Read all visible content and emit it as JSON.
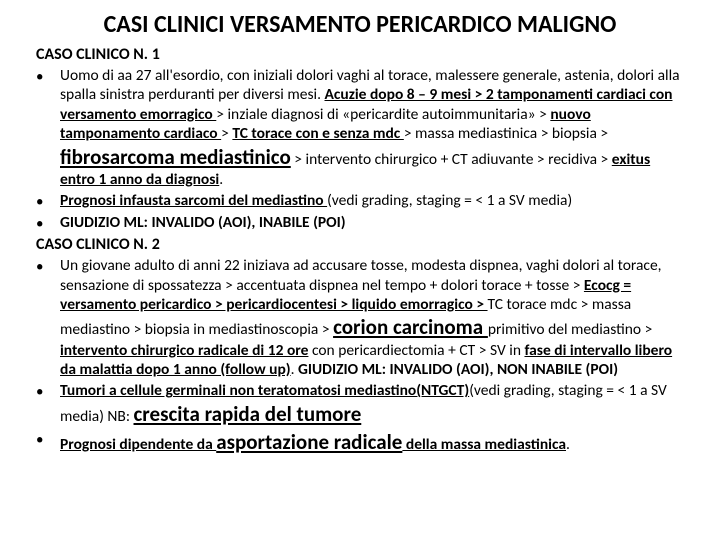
{
  "colors": {
    "background": "#ffffff",
    "text": "#000000"
  },
  "typography": {
    "family": "Calibri, Arial, sans-serif",
    "title_size": 24,
    "body_size": 15.5,
    "large_size": 21
  },
  "title": "CASI CLINICI VERSAMENTO PERICARDICO MALIGNO",
  "case1_header": "CASO CLINICO N. 1",
  "case1_b1_a": "Uomo di aa 27 all'esordio, con iniziali dolori vaghi al torace, malessere generale, astenia, dolori alla spalla sinistra perduranti per diversi mesi. ",
  "case1_b1_b": "Acuzie dopo 8 – 9 mesi > 2 tamponamenti cardiaci con versamento emorragico ",
  "case1_b1_c": "> inziale diagnosi di «pericardite autoimmunitaria» > ",
  "case1_b1_d": "nuovo tamponamento cardiaco ",
  "case1_b1_e": "> ",
  "case1_b1_f": "TC torace con e senza mdc ",
  "case1_b1_g": "> massa mediastinica > biopsia > ",
  "case1_b1_h": "fibrosarcoma mediastinico",
  "case1_b1_i": " > intervento chirurgico + CT adiuvante > recidiva > ",
  "case1_b1_j": "exitus entro 1 anno da diagnosi",
  "case1_b1_k": ".",
  "case1_b2_a": "Prognosi infausta sarcomi del mediastino ",
  "case1_b2_b": "(vedi grading, staging =  < 1 a SV media)",
  "case1_b3": "GIUDIZIO ML: INVALIDO (AOI), INABILE (POI)",
  "case2_header": "CASO CLINICO N. 2",
  "case2_b1_a": "Un giovane adulto di anni 22 iniziava ad accusare tosse, modesta dispnea, vaghi dolori al torace, sensazione di spossatezza > accentuata dispnea nel tempo + dolori torace + tosse > ",
  "case2_b1_b": "Ecocg = versamento pericardico > pericardiocentesi > liquido emorragico > ",
  "case2_b1_c": "TC torace mdc > massa mediastino > biopsia in mediastinoscopia > ",
  "case2_b1_d": "corion carcinoma ",
  "case2_b1_e": "primitivo del mediastino > ",
  "case2_b1_f": "intervento chirurgico radicale di 12 ore",
  "case2_b1_g": " con pericardiectomia + CT > SV in ",
  "case2_b1_h": "fase di intervallo libero da malattia dopo 1 anno (follow up)",
  "case2_b1_i": ". ",
  "case2_b1_j": "GIUDIZIO ML: INVALIDO (AOI), NON INABILE (POI)",
  "case2_b2_a": "Tumori a cellule germinali non teratomatosi mediastino(NTGCT)",
  "case2_b2_b": "(vedi grading, staging =  < 1 a SV media) NB: ",
  "case2_b2_c": "crescita rapida del tumore",
  "case2_b3_a": "Prognosi dipendente da ",
  "case2_b3_b": "asportazione radicale",
  "case2_b3_c": " della massa mediastinica",
  "case2_b3_d": "."
}
